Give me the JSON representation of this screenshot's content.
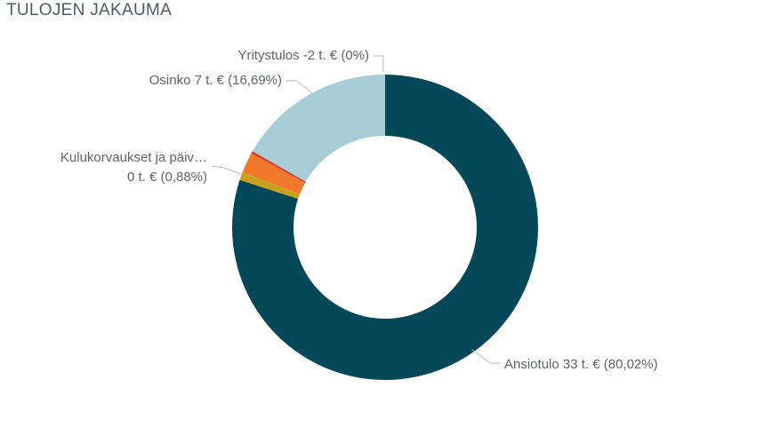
{
  "title": "TULOJEN JAKAUMA",
  "colors": {
    "title_text": "#4E5964",
    "label_text": "#606366",
    "leader_line": "#B8BCBE",
    "background": "#FFFFFF"
  },
  "chart_data": {
    "type": "pie",
    "subtype": "donut",
    "title": "TULOJEN JAKAUMA",
    "unit": "t. €",
    "legend_position": "none",
    "labels_as_callouts": true,
    "slices": [
      {
        "key": "ansiotulo",
        "name": "Ansiotulo",
        "value": 33,
        "pct": 80.02,
        "color": "#05485A",
        "label_visible": true,
        "callout": "Ansiotulo 33 t. € (80,02%)"
      },
      {
        "key": "kulukorvaukset",
        "name": "Kulukorvaukset ja päiv…",
        "value": 0,
        "pct": 0.88,
        "color": "#C9A21D",
        "label_visible": true,
        "callout": "Kulukorvaukset ja päiv… 0 t. € (0,88%)"
      },
      {
        "key": "other-orange",
        "name": "",
        "pct": 2.16,
        "color": "#F0792B",
        "label_visible": false,
        "callout": ""
      },
      {
        "key": "other-red",
        "name": "",
        "pct": 0.25,
        "color": "#D93A2B",
        "label_visible": false,
        "callout": ""
      },
      {
        "key": "osinko",
        "name": "Osinko",
        "value": 7,
        "pct": 16.69,
        "color": "#A6CDD5",
        "label_visible": true,
        "callout": "Osinko 7 t. € (16,69%)"
      },
      {
        "key": "yritystulos",
        "name": "Yritystulos",
        "value": -2,
        "pct": 0,
        "color": "#05485A",
        "label_visible": true,
        "callout": "Yritystulos -2 t. € (0%)"
      }
    ]
  },
  "callout_labels": {
    "yritystulos": "Yritystulos -2 t. € (0%)",
    "osinko": "Osinko 7 t. € (16,69%)",
    "kulukorvaukset_line1": "Kulukorvaukset ja päiv…",
    "kulukorvaukset_line2": "0 t. € (0,88%)",
    "ansiotulo": "Ansiotulo 33 t. € (80,02%)"
  }
}
